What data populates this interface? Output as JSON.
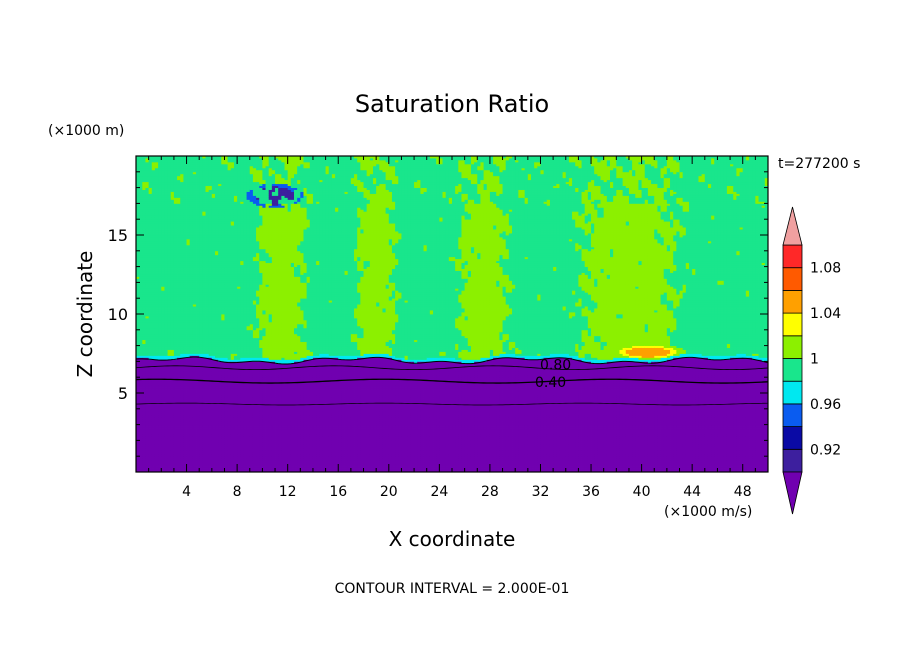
{
  "chart_data": {
    "type": "heatmap",
    "title": "Saturation Ratio",
    "xlabel": "X coordinate",
    "ylabel": "Z coordinate",
    "x_unit": "(×1000 m/s)",
    "y_unit": "(×1000 m)",
    "time_label": "t=277200 s",
    "footer": "CONTOUR INTERVAL = 2.000E-01",
    "xlim": [
      0,
      50
    ],
    "ylim": [
      0,
      20
    ],
    "x_ticks": [
      4,
      8,
      12,
      16,
      20,
      24,
      28,
      32,
      36,
      40,
      44,
      48
    ],
    "y_ticks": [
      5,
      10,
      15
    ],
    "contour_labels": [
      {
        "text": "0.80",
        "x": 33.2,
        "z": 6.8
      },
      {
        "text": "0.40",
        "x": 32.8,
        "z": 5.7
      }
    ],
    "colorbar": {
      "levels": [
        0.9,
        0.92,
        0.94,
        0.96,
        0.98,
        1.0,
        1.02,
        1.04,
        1.06,
        1.08,
        1.1
      ],
      "tick_labels": [
        "0.92",
        "0.96",
        "1",
        "1.04",
        "1.08"
      ],
      "tick_values": [
        0.92,
        0.96,
        1.0,
        1.04,
        1.08
      ],
      "colors": [
        "#3d1f9e",
        "#0a0aa5",
        "#0a5cf0",
        "#00e8f0",
        "#19e68c",
        "#8cf000",
        "#ffff00",
        "#ffa000",
        "#ff5a00",
        "#ff2828"
      ],
      "under_color": "#7000b0",
      "over_color": "#f0a0a0"
    },
    "fields": {
      "layer_top_z": 7.1,
      "lower_value": 0.5,
      "background_value": 0.99,
      "plumes": [
        {
          "x_range": [
            9,
            14
          ],
          "value": 1.01
        },
        {
          "x_range": [
            17,
            21
          ],
          "value": 1.01
        },
        {
          "x_range": [
            25,
            30
          ],
          "value": 1.01
        },
        {
          "x_range": [
            34,
            44
          ],
          "value": 1.01
        }
      ],
      "hotspot": {
        "x": 40.5,
        "z": 7.6,
        "value": 1.06
      },
      "dry_patch": {
        "x": 11,
        "z": 17.5,
        "value": 0.9
      }
    }
  }
}
